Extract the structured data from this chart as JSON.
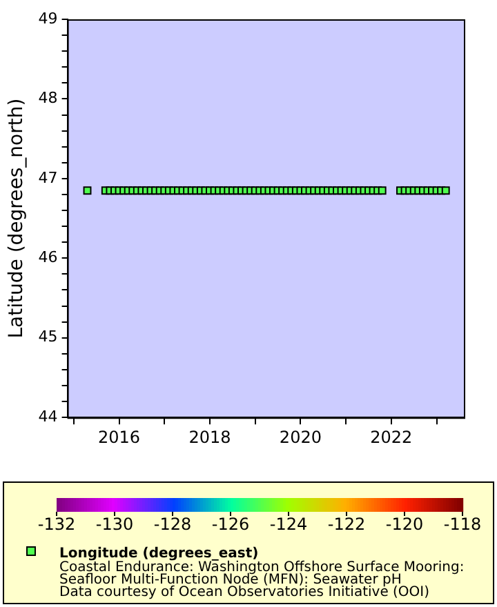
{
  "chart_data": {
    "type": "scatter",
    "ylabel": "Latitude (degrees_north)",
    "clabel": "Longitude (degrees_east)",
    "annotations": [
      "Coastal Endurance: Washington Offshore Surface Mooring:",
      "Seafloor Multi-Function Node (MFN): Seawater pH",
      "Data courtesy of Ocean Observatories Initiative (OOI)"
    ],
    "marker": "square",
    "x": [
      2015.3,
      2015.7,
      2015.8,
      2015.9,
      2016.0,
      2016.1,
      2016.2,
      2016.3,
      2016.4,
      2016.5,
      2016.6,
      2016.7,
      2016.8,
      2016.9,
      2017.0,
      2017.1,
      2017.2,
      2017.3,
      2017.4,
      2017.5,
      2017.6,
      2017.7,
      2017.8,
      2017.9,
      2018.0,
      2018.1,
      2018.2,
      2018.3,
      2018.4,
      2018.5,
      2018.6,
      2018.7,
      2018.8,
      2018.9,
      2019.0,
      2019.1,
      2019.2,
      2019.3,
      2019.4,
      2019.5,
      2019.6,
      2019.7,
      2019.8,
      2019.9,
      2020.0,
      2020.1,
      2020.2,
      2020.3,
      2020.4,
      2020.5,
      2020.6,
      2020.7,
      2020.8,
      2020.9,
      2021.0,
      2021.1,
      2021.2,
      2021.3,
      2021.4,
      2021.5,
      2021.6,
      2021.7,
      2021.8,
      2022.2,
      2022.3,
      2022.4,
      2022.5,
      2022.6,
      2022.7,
      2022.8,
      2022.9,
      2023.0,
      2023.1,
      2023.2
    ],
    "values": [
      46.85,
      46.85,
      46.85,
      46.85,
      46.85,
      46.85,
      46.85,
      46.85,
      46.85,
      46.85,
      46.85,
      46.85,
      46.85,
      46.85,
      46.85,
      46.85,
      46.85,
      46.85,
      46.85,
      46.85,
      46.85,
      46.85,
      46.85,
      46.85,
      46.85,
      46.85,
      46.85,
      46.85,
      46.85,
      46.85,
      46.85,
      46.85,
      46.85,
      46.85,
      46.85,
      46.85,
      46.85,
      46.85,
      46.85,
      46.85,
      46.85,
      46.85,
      46.85,
      46.85,
      46.85,
      46.85,
      46.85,
      46.85,
      46.85,
      46.85,
      46.85,
      46.85,
      46.85,
      46.85,
      46.85,
      46.85,
      46.85,
      46.85,
      46.85,
      46.85,
      46.85,
      46.85,
      46.85,
      46.85,
      46.85,
      46.85,
      46.85,
      46.85,
      46.85,
      46.85,
      46.85,
      46.85,
      46.85,
      46.85
    ],
    "cvalues": [
      -125,
      -125,
      -125,
      -125,
      -125,
      -125,
      -125,
      -125,
      -125,
      -125,
      -125,
      -125,
      -125,
      -125,
      -125,
      -125,
      -125,
      -125,
      -125,
      -125,
      -125,
      -125,
      -125,
      -125,
      -125,
      -125,
      -125,
      -125,
      -125,
      -125,
      -125,
      -125,
      -125,
      -125,
      -125,
      -125,
      -125,
      -125,
      -125,
      -125,
      -125,
      -125,
      -125,
      -125,
      -125,
      -125,
      -125,
      -125,
      -125,
      -125,
      -125,
      -125,
      -125,
      -125,
      -125,
      -125,
      -125,
      -125,
      -125,
      -125,
      -125,
      -125,
      -125,
      -125,
      -125,
      -125,
      -125,
      -125,
      -125,
      -125,
      -125,
      -125,
      -125,
      -125
    ],
    "xlim": [
      2014.86,
      2023.6
    ],
    "xticks": [
      {
        "value": 2015,
        "label": null
      },
      2016,
      {
        "value": 2017,
        "label": null
      },
      2018,
      {
        "value": 2019,
        "label": null
      },
      2020,
      {
        "value": 2021,
        "label": null
      },
      2022,
      {
        "value": 2023,
        "label": null
      }
    ],
    "ylim": [
      44,
      49
    ],
    "yticks": [
      44,
      {
        "value": 44.2,
        "label": null
      },
      {
        "value": 44.4,
        "label": null
      },
      {
        "value": 44.6,
        "label": null
      },
      {
        "value": 44.8,
        "label": null
      },
      45,
      {
        "value": 45.2,
        "label": null
      },
      {
        "value": 45.4,
        "label": null
      },
      {
        "value": 45.6,
        "label": null
      },
      {
        "value": 45.8,
        "label": null
      },
      46,
      {
        "value": 46.2,
        "label": null
      },
      {
        "value": 46.4,
        "label": null
      },
      {
        "value": 46.6,
        "label": null
      },
      {
        "value": 46.8,
        "label": null
      },
      47,
      {
        "value": 47.2,
        "label": null
      },
      {
        "value": 47.4,
        "label": null
      },
      {
        "value": 47.6,
        "label": null
      },
      {
        "value": 47.8,
        "label": null
      },
      48,
      {
        "value": 48.2,
        "label": null
      },
      {
        "value": 48.4,
        "label": null
      },
      {
        "value": 48.6,
        "label": null
      },
      {
        "value": 48.8,
        "label": null
      },
      49
    ],
    "clim": [
      -132,
      -118
    ],
    "cticks": [
      -132,
      -130,
      -128,
      -126,
      -124,
      -122,
      -120,
      -118
    ]
  }
}
